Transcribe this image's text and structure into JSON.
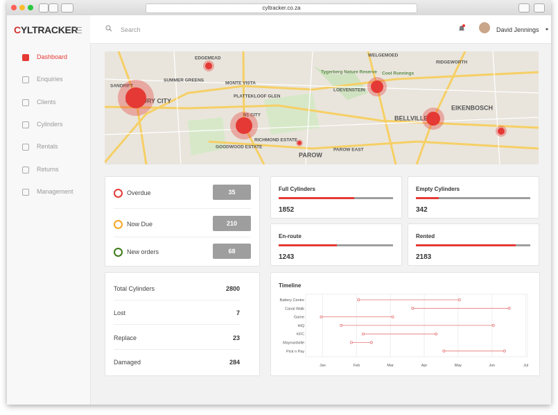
{
  "browser": {
    "url": "cyltracker.co.za"
  },
  "sidebar": {
    "logo": "CYLTRACKER",
    "menu": [
      {
        "label": "Dashboard",
        "active": true
      },
      {
        "label": "Enquiries",
        "active": false
      },
      {
        "label": "Clients",
        "active": false
      },
      {
        "label": "Cylinders",
        "active": false
      },
      {
        "label": "Rentals",
        "active": false
      },
      {
        "label": "Returns",
        "active": false
      },
      {
        "label": "Management",
        "active": false
      }
    ]
  },
  "topbar": {
    "search": "Search",
    "user": "David Jennings"
  },
  "map": {
    "labels": [
      "EDGEMEAD",
      "WELGEMOED",
      "RIDGEWORTH",
      "SANDRIFT",
      "SUMMER GREENS",
      "MONTE VISTA",
      "PLATTEKLOOF GLEN",
      "CENTURY CITY",
      "N1 CITY",
      "Tygerberg Nature Reserve",
      "LOEVENSTEIN",
      "Cool Runnings",
      "EIKENBOSCH",
      "BELLVILLE",
      "RICHMOND ESTATE",
      "GOODWOOD ESTATE",
      "PAROW",
      "PAROW EAST"
    ]
  },
  "status": [
    {
      "label": "Overdue",
      "value": 35,
      "color": "#e53935"
    },
    {
      "label": "Now Due",
      "value": 210,
      "color": "#f5a623"
    },
    {
      "label": "New orders",
      "value": 68,
      "color": "#3d7a1a"
    }
  ],
  "cylinders": [
    {
      "label": "Full Cylinders",
      "value": 1852,
      "fill_percent": 66
    },
    {
      "label": "Empty Cylinders",
      "value": 342,
      "fill_percent": 20
    },
    {
      "label": "En-route",
      "value": 1243,
      "fill_percent": 51
    },
    {
      "label": "Rented",
      "value": 2183,
      "fill_percent": 87
    }
  ],
  "totals": [
    {
      "label": "Total Cylinders",
      "value": 2800
    },
    {
      "label": "Lost",
      "value": 7
    },
    {
      "label": "Replace",
      "value": 23
    },
    {
      "label": "Damaged",
      "value": 284
    }
  ],
  "chart_data": {
    "type": "timeline",
    "title": "Timeline",
    "color": "#e57373",
    "grid": true,
    "categories": [
      "Battery Centre",
      "Canal Walk",
      "Game",
      "HiQ",
      "KFC",
      "Maynardville",
      "Pick n Pay"
    ],
    "start": [
      2.06,
      3.66,
      0.96,
      1.55,
      2.2,
      1.85,
      4.58
    ],
    "end": [
      5.04,
      6.51,
      3.07,
      6.04,
      4.35,
      2.44,
      6.37
    ],
    "xlim": [
      0.5,
      7.05
    ],
    "xticks": [
      {
        "value": 1,
        "label": "Jan"
      },
      {
        "value": 2,
        "label": "Feb"
      },
      {
        "value": 3,
        "label": "Mar"
      },
      {
        "value": 4,
        "label": "Apr"
      },
      {
        "value": 5,
        "label": "May"
      },
      {
        "value": 6,
        "label": "Jun"
      },
      {
        "value": 7,
        "label": "Jul"
      }
    ]
  }
}
